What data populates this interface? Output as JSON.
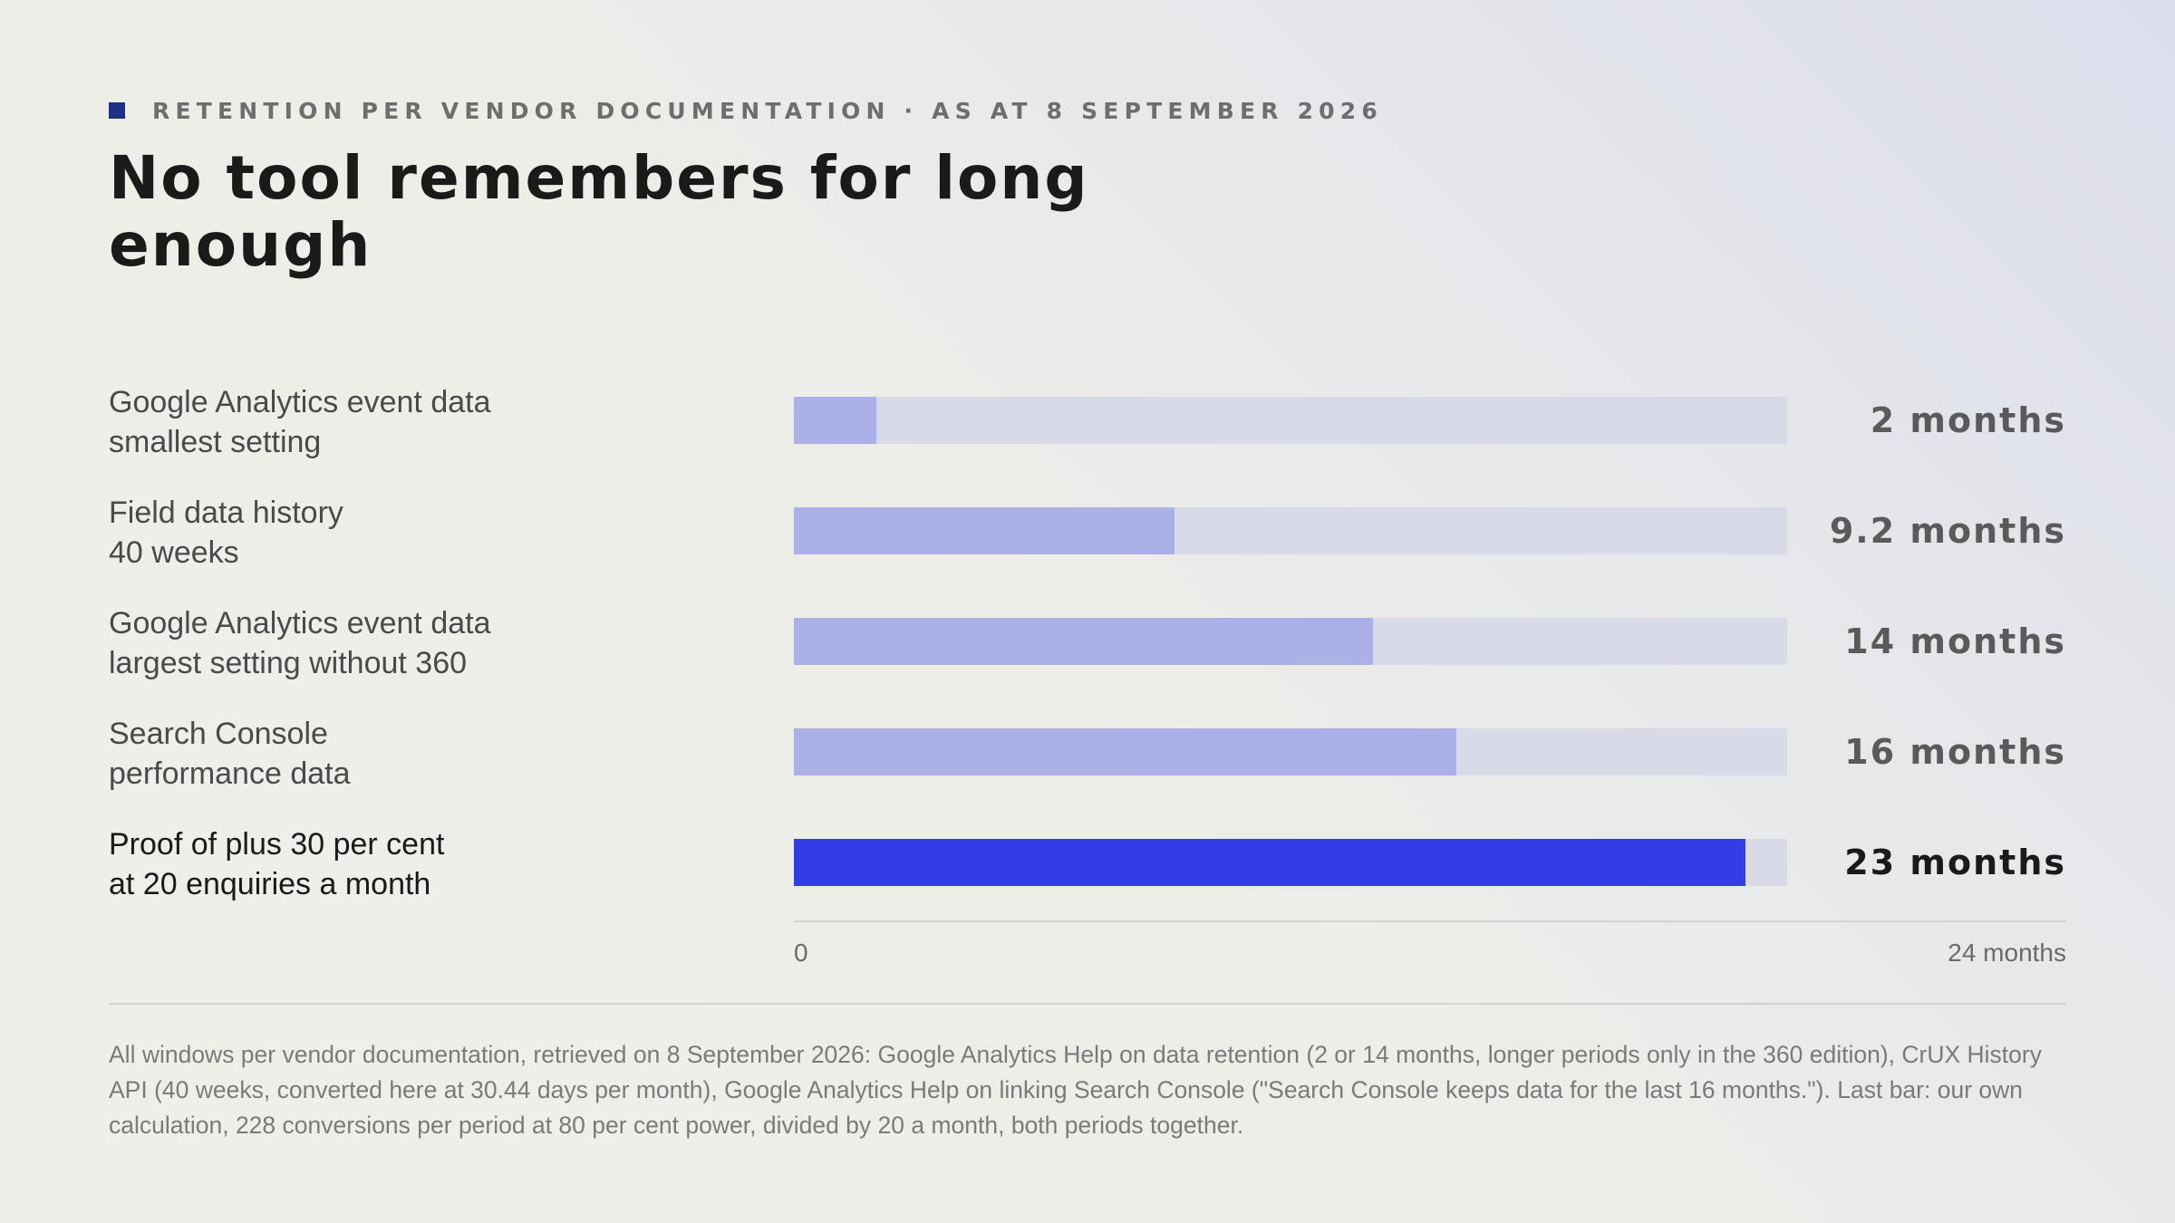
{
  "kicker": "RETENTION PER VENDOR DOCUMENTATION · AS AT 8 SEPTEMBER 2026",
  "title": "No tool remembers for long enough",
  "colors": {
    "accent_square": "#1f2d86",
    "bar_track": "#d9dae8",
    "bar_fill": "#abb0e6",
    "bar_highlight": "#333de4"
  },
  "chart_data": {
    "type": "bar",
    "orientation": "horizontal",
    "categories": [
      [
        "Google Analytics event data",
        "smallest setting"
      ],
      [
        "Field data history",
        "40 weeks"
      ],
      [
        "Google Analytics event data",
        "largest setting without 360"
      ],
      [
        "Search Console",
        "performance data"
      ],
      [
        "Proof of plus 30 per cent",
        "at 20 enquiries a month"
      ]
    ],
    "values": [
      2,
      9.2,
      14,
      16,
      23
    ],
    "value_labels": [
      "2 months",
      "9.2 months",
      "14 months",
      "16 months",
      "23 months"
    ],
    "highlight_index": 4,
    "xlim": [
      0,
      24
    ],
    "tick_labels": [
      "0",
      "24 months"
    ],
    "grid": false
  },
  "footnote": "All windows per vendor documentation, retrieved on 8 September 2026: Google Analytics Help on data retention (2 or 14 months, longer periods only in the 360 edition), CrUX History API (40 weeks, converted here at 30.44 days per month), Google Analytics Help on linking Search Console (\"Search Console keeps data for the last 16 months.\"). Last bar: our own calculation, 228 conversions per period at 80 per cent power, divided by 20 a month, both periods together."
}
